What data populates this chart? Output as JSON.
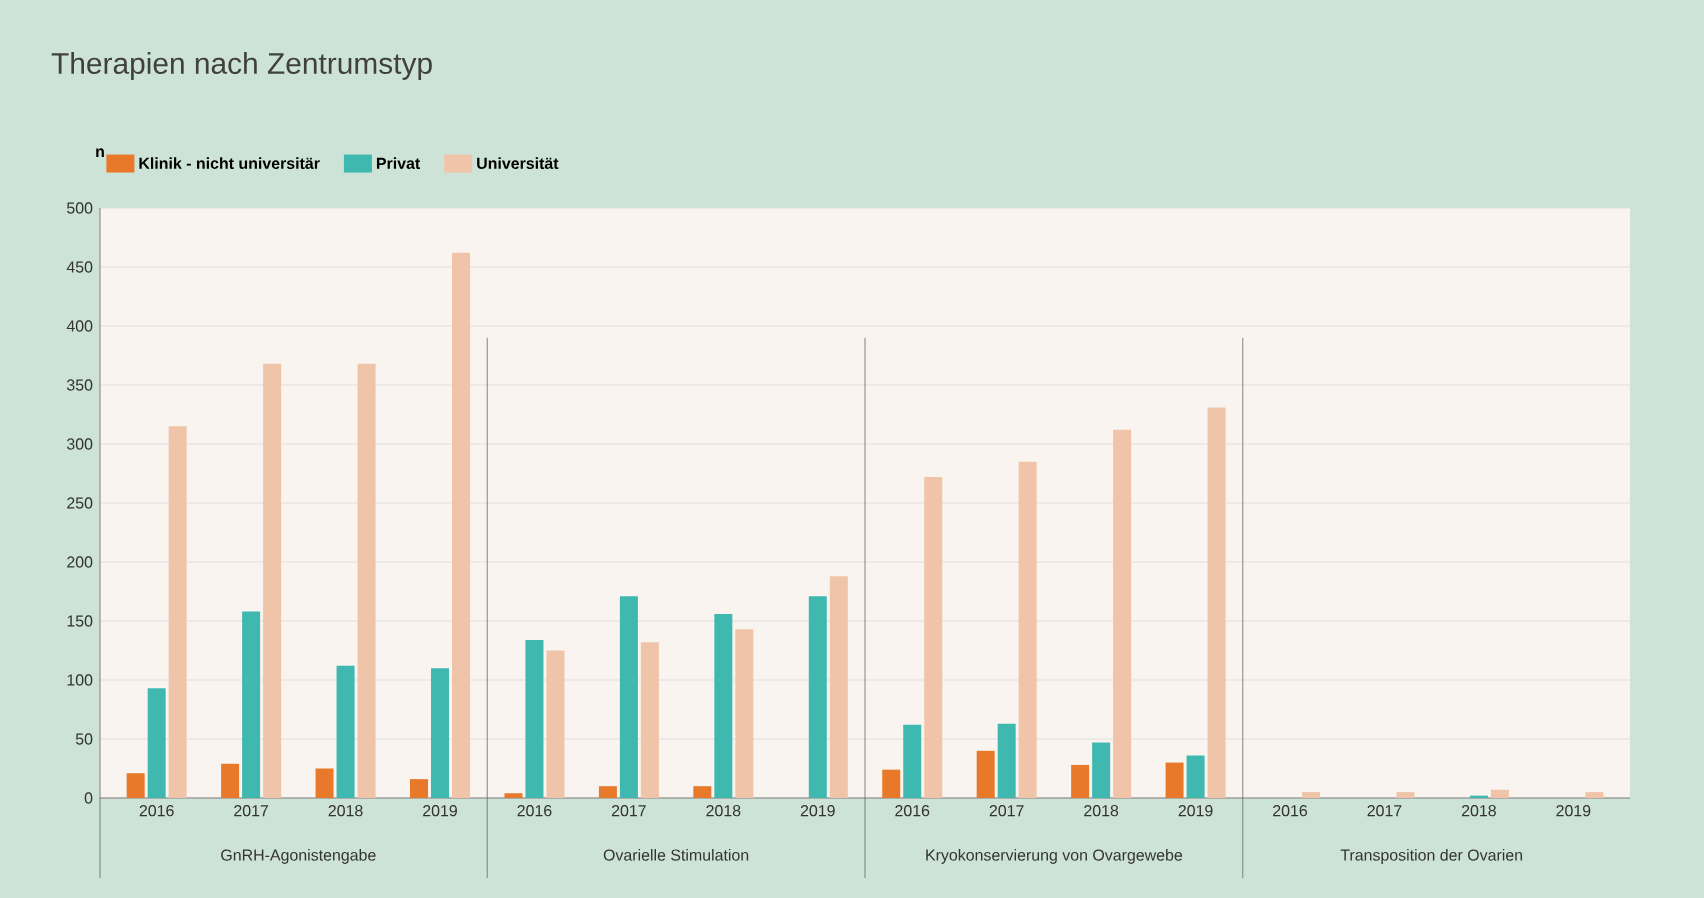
{
  "chart_data": {
    "type": "bar",
    "title": "Therapien nach Zentrumstyp",
    "ylabel": "n",
    "categories": [
      "2016",
      "2017",
      "2018",
      "2019",
      "2016",
      "2017",
      "2018",
      "2019",
      "2016",
      "2017",
      "2018",
      "2019",
      "2016",
      "2017",
      "2018",
      "2019"
    ],
    "series": [
      {
        "name": "Klinik - nicht universitär",
        "color": "#e8792a",
        "values": [
          21,
          29,
          25,
          16,
          4,
          10,
          10,
          0,
          24,
          40,
          28,
          30,
          0,
          0,
          0,
          0
        ]
      },
      {
        "name": "Privat",
        "color": "#3fb8b0",
        "values": [
          93,
          158,
          112,
          110,
          134,
          171,
          156,
          171,
          62,
          63,
          47,
          36,
          0,
          0,
          2,
          0
        ]
      },
      {
        "name": "Universität",
        "color": "#f0c4a8",
        "values": [
          315,
          368,
          368,
          462,
          125,
          132,
          143,
          188,
          272,
          285,
          312,
          331,
          5,
          5,
          7,
          5
        ]
      }
    ],
    "ylim": [
      0,
      500
    ],
    "yticks": [
      0,
      50,
      100,
      150,
      200,
      250,
      300,
      350,
      400,
      450,
      500
    ],
    "grid": "y",
    "legend": "top left",
    "annotations": [
      "GnRH-Agonistengabe",
      "Ovarielle Stimulation",
      "Kryokonservierung von Ovargewebe",
      "Transposition der Ovarien"
    ]
  }
}
